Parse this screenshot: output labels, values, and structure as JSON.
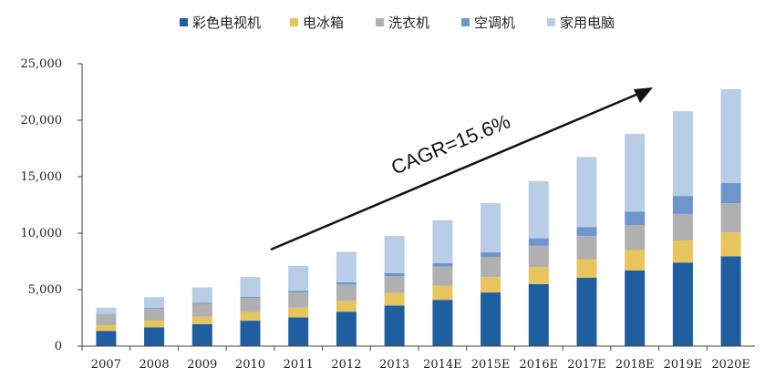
{
  "chart_data": {
    "type": "bar",
    "stacked": true,
    "categories": [
      "2007",
      "2008",
      "2009",
      "2010",
      "2011",
      "2012",
      "2013",
      "2014E",
      "2015E",
      "2016E",
      "2017E",
      "2018E",
      "2019E",
      "2020E"
    ],
    "series": [
      {
        "name": "彩色电视机",
        "color": "#1f5fa0",
        "values": [
          1350,
          1650,
          1950,
          2250,
          2550,
          3050,
          3600,
          4100,
          4750,
          5500,
          6050,
          6700,
          7400,
          7950
        ]
      },
      {
        "name": "电冰箱",
        "color": "#e8c55c",
        "values": [
          500,
          600,
          650,
          750,
          850,
          950,
          1100,
          1250,
          1350,
          1500,
          1650,
          1800,
          1950,
          2100
        ]
      },
      {
        "name": "洗衣机",
        "color": "#b0b0b0",
        "values": [
          950,
          1050,
          1150,
          1250,
          1350,
          1450,
          1500,
          1700,
          1800,
          1900,
          2050,
          2200,
          2350,
          2600
        ]
      },
      {
        "name": "空调机",
        "color": "#6f96cc",
        "values": [
          50,
          80,
          100,
          120,
          150,
          200,
          250,
          300,
          400,
          650,
          800,
          1200,
          1600,
          1800
        ]
      },
      {
        "name": "家用电脑",
        "color": "#b9cde6",
        "values": [
          550,
          950,
          1350,
          1750,
          2200,
          2700,
          3300,
          3800,
          4350,
          5050,
          6200,
          6900,
          7500,
          8300
        ]
      }
    ],
    "ylim": [
      0,
      25000
    ],
    "yticks": [
      "0",
      "5,000",
      "10,000",
      "15,000",
      "20,000",
      "25,000"
    ],
    "ytick_values": [
      0,
      5000,
      10000,
      15000,
      20000,
      25000
    ],
    "legend_position": "top-center",
    "grid": false,
    "annotation": {
      "text": "CAGR=15.6%",
      "arrow": "upward trend, 2011 to 2019E"
    }
  }
}
